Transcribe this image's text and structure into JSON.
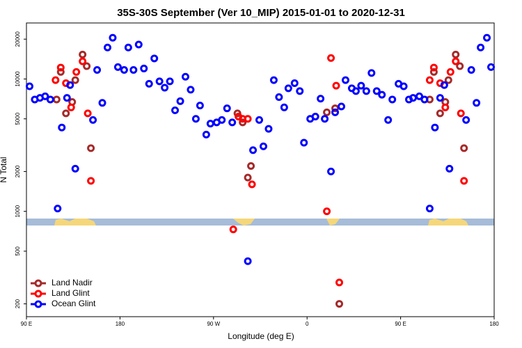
{
  "chart_data": {
    "type": "scatter",
    "title": "35S-30S September (Ver 10_MIP)   2015-01-01 to 2020-12-31",
    "x_label": "Longitude (deg E)",
    "y_label": "N Total",
    "xlim": [
      90,
      540
    ],
    "ylim": [
      160,
      26500
    ],
    "log_y": true,
    "legend": "lower left",
    "xticks": [
      {
        "value": 90,
        "label": "90 E"
      },
      180,
      {
        "value": 270,
        "label": "90 W"
      },
      {
        "value": 360,
        "label": "0"
      },
      {
        "value": 450,
        "label": "90 E"
      },
      {
        "value": 540,
        "label": "180"
      }
    ],
    "yticks": [
      200,
      500,
      1000,
      2000,
      5000,
      10000,
      20000
    ],
    "series": [
      {
        "name": "Land Nadir",
        "color": "#a52a2a",
        "x": [
          119,
          123,
          128,
          134,
          137,
          144,
          148,
          152,
          293,
          298,
          303,
          306,
          379,
          387,
          391,
          478,
          482,
          488,
          493,
          496,
          503,
          507,
          511
        ],
        "values": [
          7000,
          11300,
          5500,
          6700,
          9800,
          15300,
          12500,
          3000,
          5500,
          4700,
          1800,
          2200,
          5600,
          6000,
          200,
          7000,
          11300,
          5500,
          6700,
          9800,
          15300,
          12500,
          3000
        ]
      },
      {
        "name": "Land Glint",
        "color": "#ff0000",
        "x": [
          118,
          123,
          128,
          133,
          138,
          144,
          149,
          152,
          289,
          294,
          298,
          303,
          307,
          379,
          383,
          388,
          391,
          478,
          482,
          488,
          493,
          498,
          503,
          508,
          511
        ],
        "values": [
          9800,
          12200,
          9300,
          6100,
          11300,
          13600,
          5500,
          1700,
          730,
          5200,
          5000,
          5000,
          1600,
          1000,
          14400,
          8900,
          290,
          9800,
          12200,
          9300,
          6100,
          11300,
          13600,
          5500,
          1700
        ]
      },
      {
        "name": "Ocean Glint",
        "color": "#0000ff",
        "x": [
          93,
          98,
          103,
          108,
          113,
          120,
          124,
          129,
          132,
          137,
          154,
          158,
          163,
          168,
          173,
          178,
          184,
          188,
          193,
          198,
          203,
          208,
          213,
          218,
          223,
          228,
          233,
          238,
          243,
          248,
          253,
          257,
          263,
          267,
          273,
          278,
          283,
          288,
          303,
          308,
          314,
          318,
          323,
          328,
          333,
          338,
          342,
          348,
          353,
          357,
          363,
          368,
          373,
          377,
          383,
          387,
          393,
          397,
          403,
          407,
          412,
          417,
          422,
          427,
          432,
          438,
          442,
          448,
          453,
          458,
          462,
          468,
          473,
          478,
          483,
          488,
          492,
          497,
          513,
          518,
          523,
          527,
          533,
          537
        ],
        "values": [
          8800,
          7000,
          7200,
          7400,
          7000,
          1050,
          4300,
          7200,
          9000,
          2100,
          4900,
          11700,
          6600,
          17300,
          20500,
          12300,
          11700,
          17300,
          11700,
          18200,
          12000,
          9200,
          14300,
          9600,
          8600,
          9600,
          5800,
          6800,
          10400,
          8300,
          5000,
          6300,
          3800,
          4600,
          4700,
          4900,
          6000,
          4700,
          420,
          2900,
          4900,
          3100,
          4200,
          9800,
          7300,
          6100,
          8500,
          9300,
          8100,
          3300,
          5000,
          5200,
          7100,
          5000,
          2000,
          5600,
          6200,
          9800,
          8500,
          8100,
          8900,
          8100,
          11100,
          8100,
          7600,
          4900,
          7000,
          9200,
          8800,
          7000,
          7200,
          7400,
          7000,
          1050,
          4300,
          7200,
          9000,
          2100,
          4900,
          11700,
          6600,
          17300,
          20500,
          12300
        ]
      }
    ]
  }
}
